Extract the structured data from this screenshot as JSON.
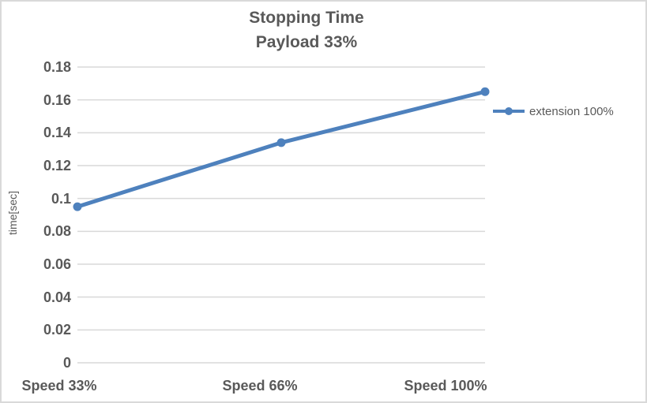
{
  "window": {
    "background": "#ffffff",
    "border_color": "#d9d9d9"
  },
  "chart_data": {
    "type": "line",
    "title": "Stopping Time",
    "subtitle": "Payload 33%",
    "categories": [
      "Speed 33%",
      "Speed 66%",
      "Speed 100%"
    ],
    "series": [
      {
        "name": "extension 100%",
        "values": [
          0.095,
          0.134,
          0.165
        ]
      }
    ],
    "xlabel": "",
    "ylabel": "time[sec]",
    "ylim": [
      0,
      0.18
    ],
    "ytick_step": 0.02,
    "ytick_labels": [
      "0",
      "0.02",
      "0.04",
      "0.06",
      "0.08",
      "0.1",
      "0.12",
      "0.14",
      "0.16",
      "0.18"
    ],
    "grid": true,
    "legend_position": "right",
    "marker": "circle",
    "colors": {
      "series": "#4E81BD",
      "gridline": "#d9d9d9",
      "text": "#595959"
    }
  }
}
